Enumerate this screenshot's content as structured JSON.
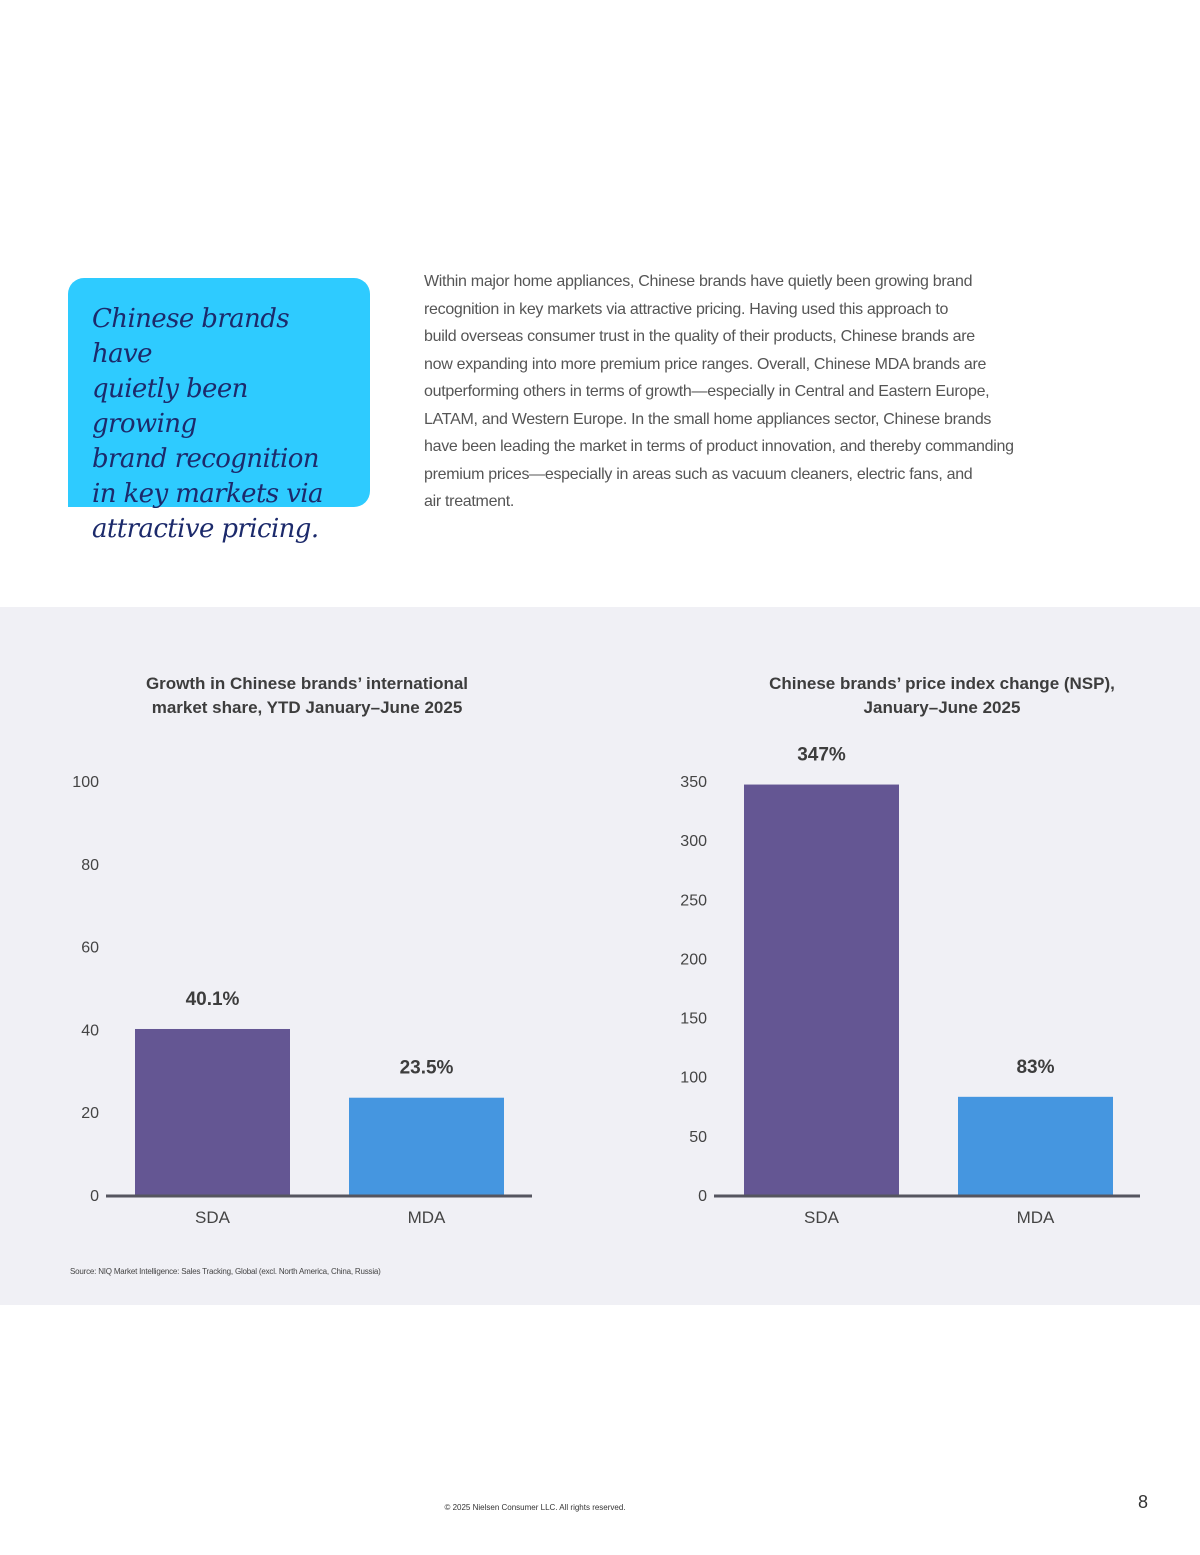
{
  "callout": {
    "text": "Chinese brands have\nquietly been growing\nbrand recognition\nin key markets via\nattractive pricing."
  },
  "intro": {
    "text": "Within major home appliances, Chinese brands have quietly been growing brand\nrecognition in key markets via attractive pricing. Having used this approach to\nbuild overseas consumer trust in the quality of their products, Chinese brands are\nnow expanding into more premium price ranges. Overall, Chinese MDA brands are\noutperforming others in terms of growth—especially in Central and Eastern Europe,\nLATAM, and Western Europe. In the small home appliances sector, Chinese brands\nhave been leading the market in terms of product innovation, and thereby commanding\npremium prices—especially in areas such as vacuum cleaners, electric fans, and\nair treatment."
  },
  "colors": {
    "callout_bg": "#2ecbff",
    "panel_bg": "#f0f0f5",
    "sda_bar": "#645693",
    "mda_bar": "#4596e0",
    "axis": "#55555f"
  },
  "chart_data": [
    {
      "type": "bar",
      "title": "Growth in Chinese brands’ international\nmarket share, YTD January–June 2025",
      "categories": [
        "SDA",
        "MDA"
      ],
      "values": [
        40.1,
        23.5
      ],
      "value_labels": [
        "40.1%",
        "23.5%"
      ],
      "yticks": [
        0,
        20,
        40,
        60,
        80,
        100
      ],
      "ylim": [
        0,
        100
      ],
      "xlabel": "",
      "ylabel": "",
      "grid": false
    },
    {
      "type": "bar",
      "title": "Chinese brands’ price index change (NSP),\nJanuary–June 2025",
      "categories": [
        "SDA",
        "MDA"
      ],
      "values": [
        347,
        83
      ],
      "value_labels": [
        "347%",
        "83%"
      ],
      "yticks": [
        0,
        50,
        100,
        150,
        200,
        250,
        300,
        350
      ],
      "ylim": [
        0,
        350
      ],
      "xlabel": "",
      "ylabel": "",
      "grid": false
    }
  ],
  "source": "Source: NIQ Market Intelligence: Sales Tracking, Global (excl. North America, China, Russia)",
  "footer": {
    "copyright": "© 2025 Nielsen Consumer LLC. All rights reserved.",
    "page_number": "8"
  }
}
